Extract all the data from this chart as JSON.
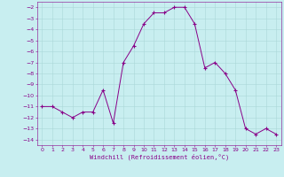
{
  "x": [
    0,
    1,
    2,
    3,
    4,
    5,
    6,
    7,
    8,
    9,
    10,
    11,
    12,
    13,
    14,
    15,
    16,
    17,
    18,
    19,
    20,
    21,
    22,
    23
  ],
  "y": [
    -11,
    -11,
    -11.5,
    -12,
    -11.5,
    -11.5,
    -9.5,
    -12.5,
    -7,
    -5.5,
    -3.5,
    -2.5,
    -2.5,
    -2,
    -2,
    -3.5,
    -7.5,
    -7,
    -8,
    -9.5,
    -13,
    -13.5,
    -13,
    -13.5
  ],
  "line_color": "#880088",
  "marker_color": "#880088",
  "bg_color": "#c8eef0",
  "grid_color": "#aad8d8",
  "xlabel": "Windchill (Refroidissement éolien,°C)",
  "xlabel_color": "#880088",
  "tick_color": "#880088",
  "ylim": [
    -14.5,
    -1.5
  ],
  "xlim": [
    -0.5,
    23.5
  ],
  "yticks": [
    -14,
    -13,
    -12,
    -11,
    -10,
    -9,
    -8,
    -7,
    -6,
    -5,
    -4,
    -3,
    -2
  ],
  "xticks": [
    0,
    1,
    2,
    3,
    4,
    5,
    6,
    7,
    8,
    9,
    10,
    11,
    12,
    13,
    14,
    15,
    16,
    17,
    18,
    19,
    20,
    21,
    22,
    23
  ],
  "figsize": [
    3.2,
    2.0
  ],
  "dpi": 100
}
